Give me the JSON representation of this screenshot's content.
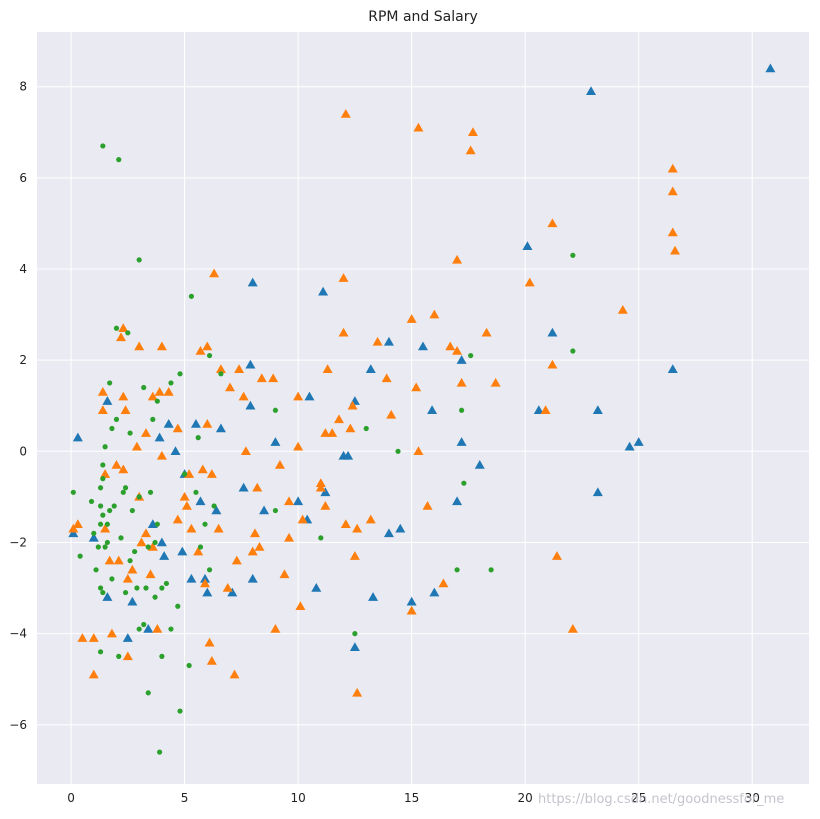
{
  "chart_data": {
    "type": "scatter",
    "title": "RPM and Salary",
    "xlabel": "",
    "ylabel": "",
    "xlim": [
      -1.5,
      32.5
    ],
    "ylim": [
      -7.3,
      9.2
    ],
    "xticks": [
      0,
      5,
      10,
      15,
      20,
      25,
      30
    ],
    "yticks": [
      -6,
      -4,
      -2,
      0,
      2,
      4,
      6,
      8
    ],
    "grid": true,
    "legend": "none",
    "colors": {
      "background": "#eaeaf2",
      "grid": "#ffffff",
      "blue": "#1f77b4",
      "orange": "#ff7f0e",
      "green": "#2ca02c"
    },
    "series": [
      {
        "marker": "triangle",
        "color": "#1f77b4",
        "points": [
          [
            0.1,
            -1.8
          ],
          [
            0.3,
            0.3
          ],
          [
            1.0,
            -1.9
          ],
          [
            1.6,
            1.1
          ],
          [
            1.6,
            -3.2
          ],
          [
            2.5,
            -4.1
          ],
          [
            2.7,
            -3.3
          ],
          [
            3.4,
            -3.9
          ],
          [
            3.6,
            -1.6
          ],
          [
            3.9,
            0.3
          ],
          [
            4.0,
            -2.0
          ],
          [
            4.1,
            -2.3
          ],
          [
            4.3,
            0.6
          ],
          [
            4.6,
            0.0
          ],
          [
            4.9,
            -2.2
          ],
          [
            5.0,
            -0.5
          ],
          [
            5.3,
            -2.8
          ],
          [
            5.5,
            0.6
          ],
          [
            5.7,
            -1.1
          ],
          [
            5.9,
            -2.8
          ],
          [
            6.0,
            -3.1
          ],
          [
            6.4,
            -1.3
          ],
          [
            6.6,
            0.5
          ],
          [
            7.1,
            -3.1
          ],
          [
            7.6,
            -0.8
          ],
          [
            7.9,
            1.0
          ],
          [
            7.9,
            1.9
          ],
          [
            8.0,
            3.7
          ],
          [
            8.0,
            -2.8
          ],
          [
            8.5,
            -1.3
          ],
          [
            9.0,
            0.2
          ],
          [
            10.0,
            -1.1
          ],
          [
            10.4,
            -1.5
          ],
          [
            10.5,
            1.2
          ],
          [
            10.8,
            -3.0
          ],
          [
            11.1,
            3.5
          ],
          [
            11.2,
            -0.9
          ],
          [
            12.0,
            -0.1
          ],
          [
            12.2,
            -0.1
          ],
          [
            12.5,
            -4.3
          ],
          [
            12.5,
            1.1
          ],
          [
            13.2,
            1.8
          ],
          [
            13.3,
            -3.2
          ],
          [
            14.0,
            2.4
          ],
          [
            14.0,
            -1.8
          ],
          [
            14.5,
            -1.7
          ],
          [
            15.0,
            -3.3
          ],
          [
            15.5,
            2.3
          ],
          [
            15.9,
            0.9
          ],
          [
            16.0,
            -3.1
          ],
          [
            17.0,
            -1.1
          ],
          [
            17.2,
            0.2
          ],
          [
            17.2,
            2.0
          ],
          [
            18.0,
            -0.3
          ],
          [
            20.1,
            4.5
          ],
          [
            20.6,
            0.9
          ],
          [
            21.2,
            2.6
          ],
          [
            22.9,
            7.9
          ],
          [
            23.2,
            -0.9
          ],
          [
            23.2,
            0.9
          ],
          [
            24.6,
            0.1
          ],
          [
            25.0,
            0.2
          ],
          [
            26.5,
            1.8
          ],
          [
            30.8,
            8.4
          ]
        ]
      },
      {
        "marker": "triangle",
        "color": "#ff7f0e",
        "points": [
          [
            0.1,
            -1.7
          ],
          [
            0.3,
            -1.6
          ],
          [
            0.5,
            -4.1
          ],
          [
            1.0,
            -4.1
          ],
          [
            1.0,
            -4.9
          ],
          [
            1.4,
            1.3
          ],
          [
            1.4,
            0.9
          ],
          [
            1.5,
            -0.5
          ],
          [
            1.5,
            -1.7
          ],
          [
            1.7,
            -2.4
          ],
          [
            1.8,
            -4.0
          ],
          [
            2.0,
            -0.3
          ],
          [
            2.1,
            -2.4
          ],
          [
            2.2,
            2.5
          ],
          [
            2.3,
            2.7
          ],
          [
            2.3,
            1.2
          ],
          [
            2.3,
            -0.4
          ],
          [
            2.4,
            0.9
          ],
          [
            2.5,
            -2.8
          ],
          [
            2.5,
            -4.5
          ],
          [
            2.7,
            -2.6
          ],
          [
            2.9,
            0.1
          ],
          [
            3.0,
            2.3
          ],
          [
            3.0,
            -1.0
          ],
          [
            3.1,
            -2.0
          ],
          [
            3.3,
            0.4
          ],
          [
            3.3,
            -1.8
          ],
          [
            3.5,
            -2.7
          ],
          [
            3.6,
            -2.1
          ],
          [
            3.6,
            1.2
          ],
          [
            3.8,
            -3.9
          ],
          [
            3.9,
            1.3
          ],
          [
            4.0,
            -0.1
          ],
          [
            4.0,
            2.3
          ],
          [
            4.3,
            1.3
          ],
          [
            4.7,
            0.5
          ],
          [
            4.7,
            -1.5
          ],
          [
            5.0,
            -1.0
          ],
          [
            5.1,
            -1.2
          ],
          [
            5.2,
            -0.5
          ],
          [
            5.3,
            -1.7
          ],
          [
            5.6,
            -2.2
          ],
          [
            5.7,
            2.2
          ],
          [
            5.8,
            -0.4
          ],
          [
            5.9,
            -2.9
          ],
          [
            6.0,
            2.3
          ],
          [
            6.0,
            0.6
          ],
          [
            6.1,
            -4.2
          ],
          [
            6.2,
            -0.5
          ],
          [
            6.3,
            3.9
          ],
          [
            6.2,
            -4.6
          ],
          [
            6.6,
            1.8
          ],
          [
            6.5,
            -1.7
          ],
          [
            6.9,
            -3.0
          ],
          [
            7.0,
            1.4
          ],
          [
            7.2,
            -4.9
          ],
          [
            7.3,
            -2.4
          ],
          [
            7.4,
            1.8
          ],
          [
            7.6,
            1.2
          ],
          [
            7.7,
            0.0
          ],
          [
            8.0,
            -2.2
          ],
          [
            8.1,
            -1.8
          ],
          [
            8.2,
            -0.8
          ],
          [
            8.3,
            -2.1
          ],
          [
            8.4,
            1.6
          ],
          [
            8.9,
            1.6
          ],
          [
            9.0,
            -3.9
          ],
          [
            9.2,
            -0.3
          ],
          [
            9.4,
            -2.7
          ],
          [
            9.6,
            -1.9
          ],
          [
            9.6,
            -1.1
          ],
          [
            10.0,
            1.2
          ],
          [
            10.0,
            0.1
          ],
          [
            10.1,
            -3.4
          ],
          [
            10.2,
            -1.5
          ],
          [
            11.0,
            -0.7
          ],
          [
            11.0,
            -0.8
          ],
          [
            11.3,
            1.8
          ],
          [
            11.2,
            0.4
          ],
          [
            11.2,
            -1.2
          ],
          [
            11.5,
            0.4
          ],
          [
            11.8,
            0.7
          ],
          [
            12.0,
            3.8
          ],
          [
            12.0,
            2.6
          ],
          [
            12.1,
            7.4
          ],
          [
            12.1,
            -1.6
          ],
          [
            12.3,
            0.5
          ],
          [
            12.4,
            1.0
          ],
          [
            12.5,
            -2.3
          ],
          [
            12.6,
            -5.3
          ],
          [
            12.6,
            -1.7
          ],
          [
            13.2,
            -1.5
          ],
          [
            13.5,
            2.4
          ],
          [
            13.9,
            1.6
          ],
          [
            14.1,
            0.8
          ],
          [
            15.0,
            2.9
          ],
          [
            15.0,
            -3.5
          ],
          [
            15.2,
            1.4
          ],
          [
            15.3,
            7.1
          ],
          [
            15.3,
            0.0
          ],
          [
            15.7,
            -1.2
          ],
          [
            16.0,
            3.0
          ],
          [
            16.4,
            -2.9
          ],
          [
            16.7,
            2.3
          ],
          [
            17.0,
            4.2
          ],
          [
            17.0,
            2.2
          ],
          [
            17.2,
            1.5
          ],
          [
            17.6,
            6.6
          ],
          [
            17.7,
            7.0
          ],
          [
            18.3,
            2.6
          ],
          [
            18.7,
            1.5
          ],
          [
            20.2,
            3.7
          ],
          [
            20.9,
            0.9
          ],
          [
            21.2,
            5.0
          ],
          [
            21.2,
            1.9
          ],
          [
            21.4,
            -2.3
          ],
          [
            22.1,
            -3.9
          ],
          [
            24.3,
            3.1
          ],
          [
            26.5,
            6.2
          ],
          [
            26.5,
            5.7
          ],
          [
            26.5,
            4.8
          ],
          [
            26.6,
            4.4
          ]
        ]
      },
      {
        "marker": "circle",
        "color": "#2ca02c",
        "points": [
          [
            0.1,
            -0.9
          ],
          [
            0.4,
            -2.3
          ],
          [
            0.9,
            -1.1
          ],
          [
            1.0,
            -1.8
          ],
          [
            1.1,
            -2.6
          ],
          [
            1.2,
            -2.1
          ],
          [
            1.3,
            -1.2
          ],
          [
            1.3,
            -1.6
          ],
          [
            1.3,
            -3.0
          ],
          [
            1.3,
            -4.4
          ],
          [
            1.3,
            -0.8
          ],
          [
            1.4,
            -0.3
          ],
          [
            1.4,
            -0.6
          ],
          [
            1.4,
            -1.4
          ],
          [
            1.4,
            -3.1
          ],
          [
            1.4,
            6.7
          ],
          [
            1.5,
            0.1
          ],
          [
            1.5,
            -2.1
          ],
          [
            1.6,
            -1.6
          ],
          [
            1.6,
            -2.0
          ],
          [
            1.7,
            -1.3
          ],
          [
            1.7,
            1.5
          ],
          [
            1.8,
            0.5
          ],
          [
            1.8,
            -2.8
          ],
          [
            1.9,
            -1.2
          ],
          [
            2.0,
            2.7
          ],
          [
            2.0,
            0.7
          ],
          [
            2.1,
            6.4
          ],
          [
            2.1,
            -4.5
          ],
          [
            2.2,
            -1.9
          ],
          [
            2.3,
            -0.9
          ],
          [
            2.4,
            -0.8
          ],
          [
            2.4,
            -3.1
          ],
          [
            2.5,
            2.6
          ],
          [
            2.6,
            0.4
          ],
          [
            2.6,
            -2.4
          ],
          [
            2.7,
            -1.3
          ],
          [
            2.8,
            -2.2
          ],
          [
            2.9,
            -3.0
          ],
          [
            3.0,
            -1.0
          ],
          [
            3.0,
            4.2
          ],
          [
            3.0,
            -3.9
          ],
          [
            3.2,
            1.4
          ],
          [
            3.2,
            -3.8
          ],
          [
            3.3,
            -3.0
          ],
          [
            3.4,
            -5.3
          ],
          [
            3.4,
            -2.1
          ],
          [
            3.5,
            -0.9
          ],
          [
            3.6,
            0.7
          ],
          [
            3.7,
            -3.2
          ],
          [
            3.7,
            -2.0
          ],
          [
            3.8,
            1.1
          ],
          [
            3.8,
            -1.6
          ],
          [
            3.9,
            -6.6
          ],
          [
            4.0,
            -3.0
          ],
          [
            4.0,
            -4.5
          ],
          [
            4.2,
            -2.9
          ],
          [
            4.4,
            -3.9
          ],
          [
            4.4,
            1.5
          ],
          [
            4.7,
            -3.4
          ],
          [
            4.8,
            -5.7
          ],
          [
            4.8,
            1.7
          ],
          [
            5.0,
            -0.5
          ],
          [
            5.2,
            -4.7
          ],
          [
            5.3,
            3.4
          ],
          [
            5.5,
            -0.9
          ],
          [
            5.6,
            0.3
          ],
          [
            5.7,
            -2.1
          ],
          [
            5.9,
            -1.6
          ],
          [
            6.1,
            2.1
          ],
          [
            6.1,
            -2.6
          ],
          [
            6.3,
            -1.2
          ],
          [
            6.6,
            1.7
          ],
          [
            9.0,
            -1.3
          ],
          [
            9.0,
            0.9
          ],
          [
            11.0,
            -1.9
          ],
          [
            12.5,
            -4.0
          ],
          [
            13.0,
            0.5
          ],
          [
            14.4,
            0.0
          ],
          [
            17.0,
            -2.6
          ],
          [
            17.2,
            0.9
          ],
          [
            17.3,
            -0.7
          ],
          [
            17.6,
            2.1
          ],
          [
            18.5,
            -2.6
          ],
          [
            22.1,
            4.3
          ],
          [
            22.1,
            2.2
          ]
        ]
      }
    ]
  },
  "watermark": "https://blog.csdn.net/goodnessfor_me"
}
